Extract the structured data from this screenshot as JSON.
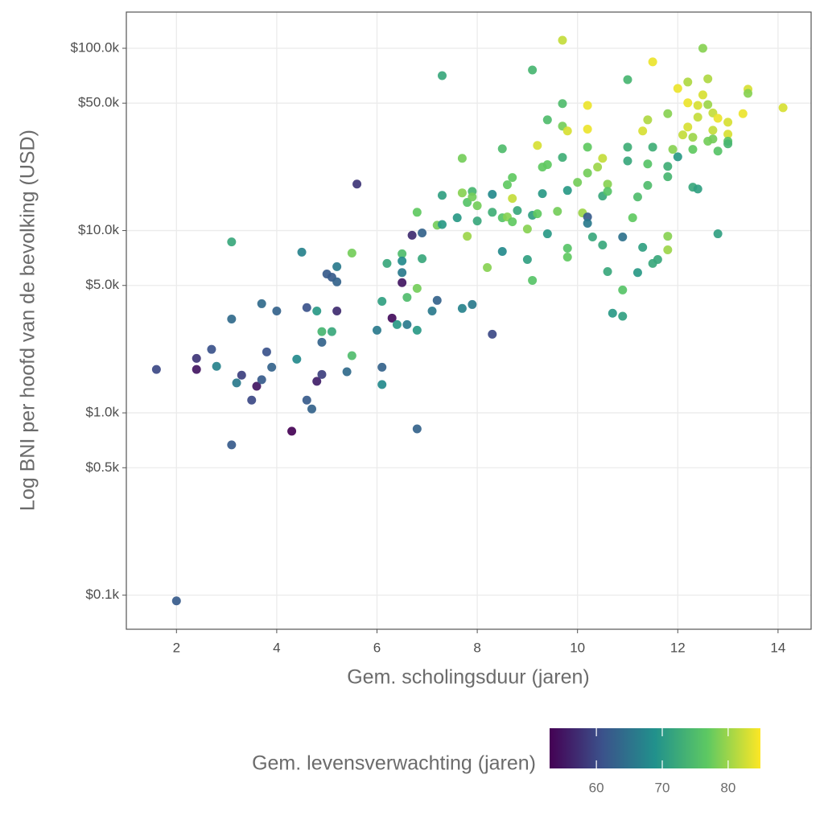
{
  "chart_data": {
    "type": "scatter",
    "x_label": "Gem. scholingsduur (jaren)",
    "y_label": "Log BNI per hoofd van de bevolking (USD)",
    "log_y": true,
    "grid": true,
    "xlim": [
      1.0,
      14.66
    ],
    "xticks": [
      2,
      4,
      6,
      8,
      10,
      12,
      14
    ],
    "ylim": [
      65,
      158000
    ],
    "yticks": [
      {
        "value": 100,
        "label": "$0.1k"
      },
      {
        "value": 500,
        "label": "$0.5k"
      },
      {
        "value": 1000,
        "label": "$1.0k"
      },
      {
        "value": 5000,
        "label": "$5.0k"
      },
      {
        "value": 10000,
        "label": "$10.0k"
      },
      {
        "value": 50000,
        "label": "$50.0k"
      },
      {
        "value": 100000,
        "label": "$100.0k"
      }
    ],
    "colorbar": {
      "title": "Gem. levensverwachting (jaren)",
      "lim": [
        52.9,
        84.9
      ],
      "ticks": [
        60,
        70,
        80
      ],
      "colormap": [
        "#440154",
        "#3b528b",
        "#21918c",
        "#5ec962",
        "#fde725"
      ]
    },
    "x": [
      1.6,
      2.0,
      2.4,
      2.4,
      2.7,
      2.8,
      3.1,
      3.1,
      3.1,
      3.2,
      3.3,
      3.5,
      3.6,
      3.7,
      3.7,
      3.8,
      3.9,
      4.0,
      4.3,
      4.4,
      4.5,
      4.6,
      4.6,
      4.7,
      4.8,
      4.8,
      4.9,
      4.9,
      4.9,
      5.0,
      5.1,
      5.1,
      5.2,
      5.2,
      5.2,
      5.4,
      5.5,
      5.5,
      5.6,
      6.0,
      6.1,
      6.1,
      6.1,
      6.2,
      6.3,
      6.4,
      6.5,
      6.5,
      6.5,
      6.5,
      6.6,
      6.6,
      6.7,
      6.8,
      6.8,
      6.8,
      6.8,
      6.9,
      6.9,
      7.1,
      7.2,
      7.2,
      7.3,
      7.3,
      7.3,
      7.6,
      7.7,
      7.7,
      7.7,
      7.8,
      7.8,
      7.9,
      7.9,
      7.9,
      8.0,
      8.0,
      8.2,
      8.3,
      8.3,
      8.3,
      8.5,
      8.5,
      8.5,
      8.6,
      8.6,
      8.7,
      8.7,
      8.7,
      8.8,
      9.0,
      9.0,
      9.1,
      9.1,
      9.1,
      9.2,
      9.2,
      9.3,
      9.3,
      9.4,
      9.4,
      9.4,
      9.6,
      9.7,
      9.7,
      9.7,
      9.7,
      9.8,
      9.8,
      9.8,
      9.8,
      10.0,
      10.1,
      10.2,
      10.2,
      10.2,
      10.2,
      10.2,
      10.2,
      10.3,
      10.4,
      10.5,
      10.5,
      10.5,
      10.6,
      10.6,
      10.6,
      10.7,
      10.9,
      10.9,
      10.9,
      11.0,
      11.0,
      11.0,
      11.1,
      11.2,
      11.2,
      11.3,
      11.3,
      11.4,
      11.4,
      11.4,
      11.5,
      11.5,
      11.5,
      11.6,
      11.8,
      11.8,
      11.8,
      11.8,
      11.8,
      11.9,
      12.0,
      12.0,
      12.1,
      12.2,
      12.2,
      12.2,
      12.3,
      12.3,
      12.3,
      12.4,
      12.4,
      12.4,
      12.5,
      12.5,
      12.6,
      12.6,
      12.6,
      12.7,
      12.7,
      12.7,
      12.8,
      12.8,
      12.8,
      13.0,
      13.0,
      13.0,
      13.0,
      13.3,
      13.4,
      13.4,
      14.1
    ],
    "values": [
      1730,
      93,
      1990,
      1730,
      2230,
      1800,
      8670,
      3270,
      667,
      1460,
      1610,
      1175,
      1400,
      3970,
      1520,
      2160,
      1780,
      3620,
      793,
      1970,
      7610,
      3780,
      1175,
      1050,
      3620,
      1490,
      2790,
      2440,
      1625,
      5780,
      5550,
      2790,
      6340,
      5230,
      3620,
      1680,
      7530,
      2060,
      18000,
      2840,
      4090,
      1780,
      1430,
      6600,
      3310,
      3050,
      7460,
      6810,
      5180,
      5880,
      4300,
      3050,
      9420,
      12600,
      4820,
      2840,
      817,
      9700,
      7010,
      3620,
      4140,
      10700,
      70800,
      15600,
      10800,
      11760,
      24900,
      16100,
      3740,
      9310,
      14270,
      16400,
      15300,
      3930,
      11290,
      13700,
      6270,
      15800,
      12600,
      2700,
      28100,
      7680,
      11760,
      17830,
      11880,
      19540,
      15000,
      11180,
      12880,
      10200,
      6940,
      76000,
      12130,
      5330,
      29300,
      12370,
      22300,
      15950,
      40500,
      23000,
      9600,
      12750,
      110700,
      49700,
      37400,
      25200,
      35200,
      16600,
      8000,
      7150,
      18380,
      12500,
      48600,
      36000,
      28700,
      20700,
      11880,
      10960,
      9220,
      22300,
      24900,
      15470,
      8330,
      17980,
      16400,
      5960,
      3520,
      9220,
      4720,
      3390,
      67300,
      28700,
      24100,
      11760,
      15300,
      5880,
      35200,
      8090,
      40500,
      23200,
      17700,
      84200,
      28700,
      6600,
      6940,
      22500,
      19750,
      43800,
      9310,
      7840,
      27900,
      25400,
      60200,
      33500,
      65300,
      50200,
      37000,
      27900,
      17300,
      32500,
      48600,
      41900,
      16900,
      100000,
      55500,
      49100,
      68000,
      30900,
      44200,
      35500,
      31800,
      41300,
      27300,
      9600,
      39300,
      33800,
      30900,
      29900,
      43800,
      59600,
      56600,
      47200
    ],
    "colors": [
      60,
      62,
      58,
      55,
      61,
      67,
      72,
      64,
      62,
      66,
      59,
      60,
      55,
      64,
      62,
      61,
      63,
      63,
      53,
      68,
      67,
      61,
      62,
      63,
      70,
      56,
      74,
      63,
      59,
      62,
      62,
      72,
      66,
      63,
      57,
      64,
      78,
      75,
      58,
      66,
      71,
      63,
      68,
      72,
      54,
      70,
      75,
      68,
      55,
      66,
      75,
      66,
      57,
      77,
      78,
      70,
      63,
      63,
      72,
      66,
      63,
      78,
      72,
      71,
      70,
      70,
      78,
      79,
      67,
      80,
      76,
      74,
      78,
      66,
      72,
      78,
      79,
      68,
      73,
      60,
      75,
      68,
      76,
      77,
      79,
      77,
      82,
      77,
      72,
      79,
      71,
      74,
      71,
      76,
      83,
      77,
      77,
      70,
      75,
      77,
      70,
      78,
      82,
      75,
      78,
      73,
      83,
      70,
      76,
      77,
      78,
      80,
      84,
      84,
      77,
      78,
      62,
      66,
      72,
      80,
      82,
      72,
      72,
      79,
      76,
      72,
      70,
      65,
      76,
      71,
      74,
      73,
      72,
      77,
      75,
      70,
      83,
      71,
      81,
      76,
      75,
      84,
      73,
      72,
      72,
      73,
      74,
      79,
      79,
      80,
      79,
      70,
      84,
      82,
      81,
      84,
      83,
      77,
      72,
      80,
      83,
      82,
      71,
      79,
      83,
      80,
      81,
      78,
      82,
      82,
      78,
      84,
      76,
      71,
      83,
      83,
      76,
      74,
      84,
      83,
      79,
      83
    ]
  }
}
